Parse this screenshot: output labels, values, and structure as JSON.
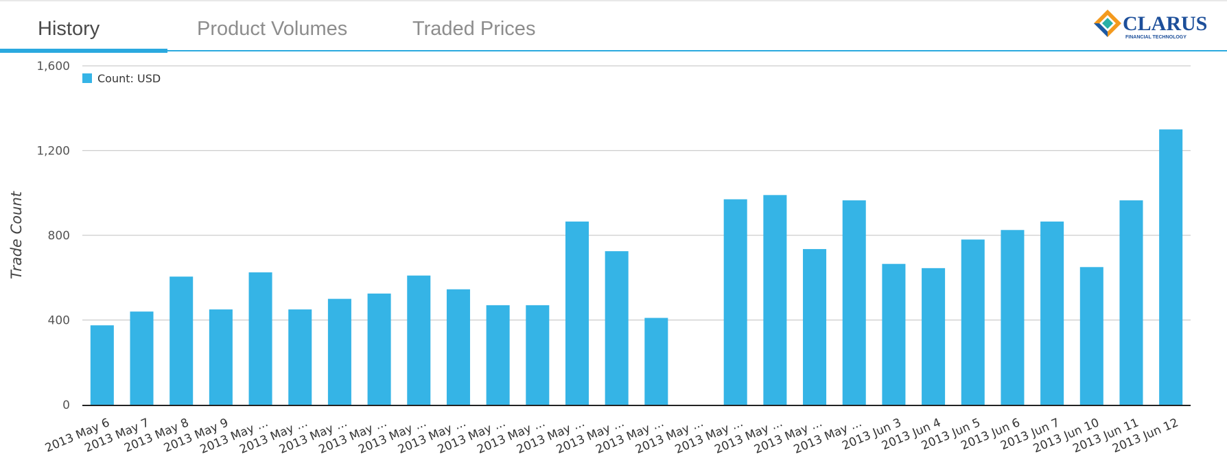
{
  "tabs": [
    {
      "label": "History",
      "active": true
    },
    {
      "label": "Product Volumes",
      "active": false
    },
    {
      "label": "Traded Prices",
      "active": false
    }
  ],
  "logo": {
    "brand": "CLARUS",
    "tagline": "FINANCIAL TECHNOLOGY",
    "colors": {
      "orange": "#f39a1e",
      "teal": "#2ab0a6",
      "blue": "#1b5aa6",
      "text": "#1d4f9a"
    }
  },
  "chart_data": {
    "type": "bar",
    "ylabel": "Trade Count",
    "xlabel": "",
    "ylim": [
      0,
      1600
    ],
    "yticks": [
      0,
      400,
      800,
      1200,
      1600
    ],
    "ytick_labels": [
      "0",
      "400",
      "800",
      "1,200",
      "1,600"
    ],
    "grid": true,
    "legend": {
      "position": "top-left",
      "label": "Count: USD"
    },
    "color": "#35b4e6",
    "series": [
      {
        "name": "Count: USD",
        "values": [
          375,
          440,
          605,
          450,
          625,
          450,
          500,
          525,
          610,
          545,
          470,
          470,
          865,
          725,
          410,
          0,
          970,
          990,
          735,
          965,
          665,
          645,
          780,
          825,
          865,
          650,
          965,
          1300
        ]
      }
    ],
    "categories": [
      "2013 May 6",
      "2013 May 7",
      "2013 May 8",
      "2013 May 9",
      "2013 May ...",
      "2013 May ...",
      "2013 May ...",
      "2013 May ...",
      "2013 May ...",
      "2013 May ...",
      "2013 May ...",
      "2013 May ...",
      "2013 May ...",
      "2013 May ...",
      "2013 May ...",
      "2013 May ...",
      "2013 May ...",
      "2013 May ...",
      "2013 May ...",
      "2013 May ...",
      "2013 Jun 3",
      "2013 Jun 4",
      "2013 Jun 5",
      "2013 Jun 6",
      "2013 Jun 7",
      "2013 Jun 10",
      "2013 Jun 11",
      "2013 Jun 12"
    ]
  }
}
